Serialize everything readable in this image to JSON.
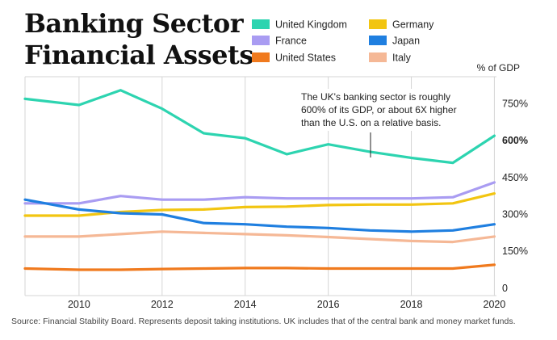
{
  "title_lines": [
    "Banking Sector",
    "Financial Assets"
  ],
  "unit_label": "% of GDP",
  "annotation": [
    "The UK's banking sector is roughly",
    "600% of its GDP, or about 6X higher",
    "than the U.S. on a relative basis."
  ],
  "source": "Source: Financial Stability Board. Represents deposit taking institutions. UK includes that of the central bank and money market funds.",
  "colors": {
    "United Kingdom": "#2dd4b0",
    "France": "#a99cf2",
    "United States": "#f07a1e",
    "Germany": "#f2c511",
    "Japan": "#1f7fe0",
    "Italy": "#f5b896"
  },
  "chart_data": {
    "type": "line",
    "title": "Banking Sector Financial Assets",
    "ylabel": "% of GDP",
    "xlabel": "",
    "xlim": [
      2008.7,
      2020.05
    ],
    "ylim": [
      -30,
      860
    ],
    "grid": true,
    "legend_placement": "top-right",
    "x_ticks": [
      2010,
      2012,
      2014,
      2016,
      2018,
      2020
    ],
    "y_ticks": [
      {
        "value": 750,
        "label": "750%",
        "bold": false
      },
      {
        "value": 600,
        "label": "600%",
        "bold": true
      },
      {
        "value": 450,
        "label": "450%",
        "bold": false
      },
      {
        "value": 300,
        "label": "300%",
        "bold": false
      },
      {
        "value": 150,
        "label": "150%",
        "bold": false
      },
      {
        "value": 0,
        "label": "0",
        "bold": false
      }
    ],
    "x": [
      2008.7,
      2010,
      2011,
      2012,
      2013,
      2014,
      2015,
      2016,
      2017,
      2018,
      2019,
      2020
    ],
    "series": [
      {
        "name": "United Kingdom",
        "values": [
          770,
          745,
          805,
          730,
          630,
          610,
          545,
          585,
          555,
          530,
          510,
          620
        ]
      },
      {
        "name": "France",
        "values": [
          345,
          345,
          375,
          360,
          360,
          370,
          365,
          365,
          365,
          365,
          370,
          430
        ]
      },
      {
        "name": "United States",
        "values": [
          80,
          75,
          75,
          78,
          80,
          82,
          82,
          80,
          80,
          80,
          80,
          95
        ]
      },
      {
        "name": "Germany",
        "values": [
          295,
          295,
          310,
          318,
          320,
          330,
          332,
          338,
          340,
          340,
          345,
          385
        ]
      },
      {
        "name": "Japan",
        "values": [
          360,
          320,
          305,
          300,
          265,
          260,
          250,
          245,
          235,
          230,
          235,
          260
        ]
      },
      {
        "name": "Italy",
        "values": [
          210,
          210,
          220,
          230,
          225,
          220,
          215,
          208,
          200,
          192,
          188,
          210
        ]
      }
    ]
  }
}
